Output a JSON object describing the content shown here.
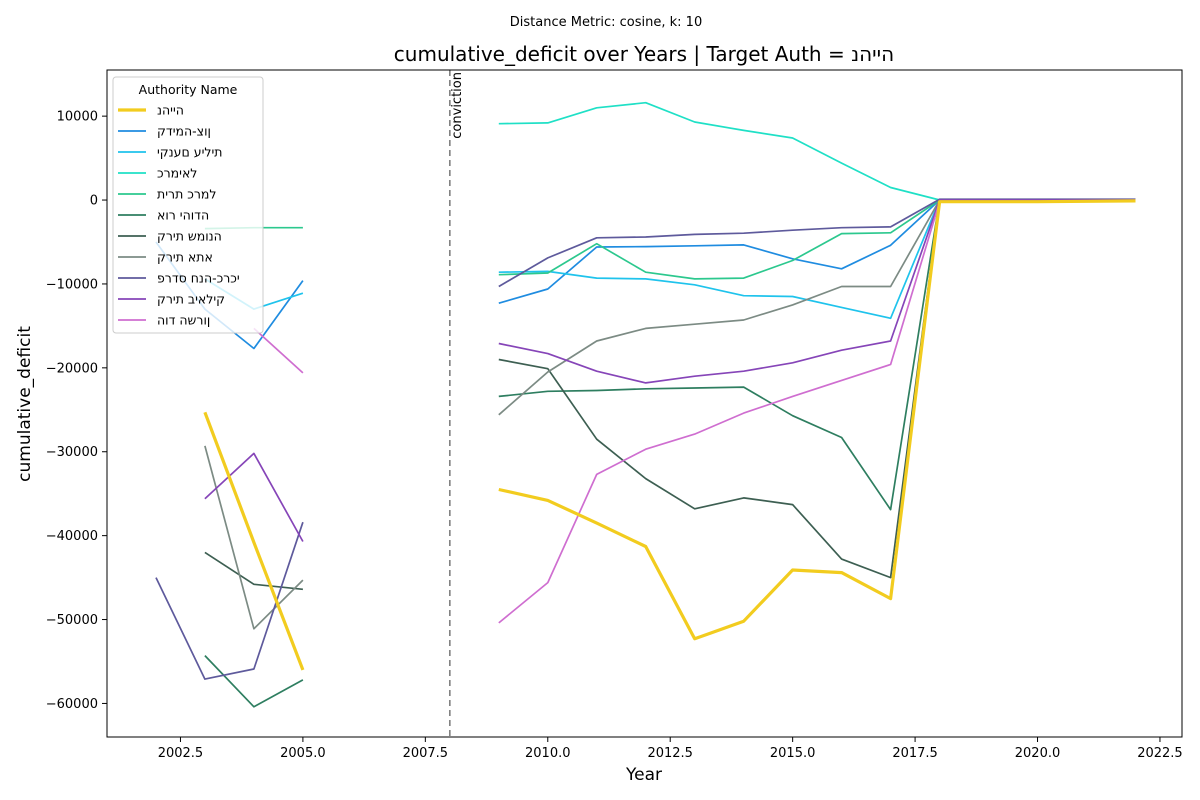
{
  "chart_data": {
    "type": "line",
    "suptitle": "Distance Metric: cosine, k: 10",
    "title": "cumulative_deficit over Years | Target Auth = הייהנ",
    "xlabel": "Year",
    "ylabel": "cumulative_deficit",
    "xlim": [
      2001.0,
      2022.95
    ],
    "ylim": [
      -64000,
      15500
    ],
    "xticks": [
      2002.5,
      2005.0,
      2007.5,
      2010.0,
      2012.5,
      2015.0,
      2017.5,
      2020.0,
      2022.5
    ],
    "xtick_labels": [
      "2002.5",
      "2005.0",
      "2007.5",
      "2010.0",
      "2012.5",
      "2015.0",
      "2017.5",
      "2020.0",
      "2022.5"
    ],
    "yticks": [
      10000,
      0,
      -10000,
      -20000,
      -30000,
      -40000,
      -50000,
      -60000
    ],
    "ytick_labels": [
      "10000",
      "0",
      "−10000",
      "−20000",
      "−30000",
      "−40000",
      "−50000",
      "−60000"
    ],
    "vline": {
      "x": 2008,
      "label": "conviction",
      "color": "#7f7f7f"
    },
    "legend": {
      "title": "Authority Name",
      "placement": "top-left"
    },
    "series": [
      {
        "name": "הייהנ",
        "color": "#f2cc1f",
        "target": true,
        "segments": [
          [
            [
              2003,
              -25300
            ],
            [
              2004,
              -40800
            ],
            [
              2005,
              -56000
            ]
          ],
          [
            [
              2009,
              -34500
            ],
            [
              2010,
              -35800
            ],
            [
              2011,
              -38500
            ],
            [
              2012,
              -41300
            ],
            [
              2013,
              -52300
            ],
            [
              2014,
              -50200
            ],
            [
              2015,
              -44100
            ],
            [
              2016,
              -44400
            ],
            [
              2017,
              -47500
            ],
            [
              2018,
              -200
            ],
            [
              2019,
              -200
            ],
            [
              2020,
              -200
            ],
            [
              2021,
              -150
            ],
            [
              2022,
              -100
            ]
          ]
        ]
      },
      {
        "name": "ןוצ-המידק",
        "color": "#1f8ce0",
        "segments": [
          [
            [
              2002,
              -5000
            ],
            [
              2003,
              -13000
            ],
            [
              2004,
              -17700
            ],
            [
              2005,
              -9600
            ]
          ],
          [
            [
              2009,
              -12300
            ],
            [
              2010,
              -10600
            ],
            [
              2011,
              -5600
            ],
            [
              2012,
              -5550
            ],
            [
              2013,
              -5450
            ],
            [
              2014,
              -5350
            ],
            [
              2015,
              -7000
            ],
            [
              2016,
              -8200
            ],
            [
              2017,
              -5400
            ],
            [
              2018,
              0
            ],
            [
              2019,
              0
            ],
            [
              2020,
              0
            ],
            [
              2021,
              0
            ],
            [
              2022,
              0
            ]
          ]
        ]
      },
      {
        "name": "תיליע םענקי",
        "color": "#1fc3ec",
        "segments": [
          [
            [
              2003,
              -9400
            ],
            [
              2004,
              -13000
            ],
            [
              2005,
              -11100
            ]
          ],
          [
            [
              2009,
              -8600
            ],
            [
              2010,
              -8500
            ],
            [
              2011,
              -9300
            ],
            [
              2012,
              -9400
            ],
            [
              2013,
              -10100
            ],
            [
              2014,
              -11400
            ],
            [
              2015,
              -11500
            ],
            [
              2016,
              -12800
            ],
            [
              2017,
              -14100
            ],
            [
              2018,
              0
            ],
            [
              2019,
              0
            ],
            [
              2020,
              0
            ],
            [
              2021,
              0
            ],
            [
              2022,
              0
            ]
          ]
        ]
      },
      {
        "name": "לאימרכ",
        "color": "#1fe0c6",
        "segments": [
          [
            [
              2009,
              9100
            ],
            [
              2010,
              9200
            ],
            [
              2011,
              11000
            ],
            [
              2012,
              11600
            ],
            [
              2013,
              9300
            ],
            [
              2014,
              8300
            ],
            [
              2015,
              7400
            ],
            [
              2016,
              4400
            ],
            [
              2017,
              1500
            ],
            [
              2018,
              0
            ],
            [
              2019,
              0
            ],
            [
              2020,
              0
            ],
            [
              2021,
              0
            ],
            [
              2022,
              0
            ]
          ]
        ]
      },
      {
        "name": "למרכ תרית",
        "color": "#2cc88e",
        "segments": [
          [
            [
              2003,
              -3400
            ],
            [
              2004,
              -3300
            ],
            [
              2005,
              -3300
            ]
          ],
          [
            [
              2009,
              -8900
            ],
            [
              2010,
              -8700
            ],
            [
              2011,
              -5200
            ],
            [
              2012,
              -8600
            ],
            [
              2013,
              -9400
            ],
            [
              2014,
              -9300
            ],
            [
              2015,
              -7200
            ],
            [
              2016,
              -4000
            ],
            [
              2017,
              -3900
            ],
            [
              2018,
              0
            ],
            [
              2019,
              0
            ],
            [
              2020,
              0
            ],
            [
              2021,
              0
            ],
            [
              2022,
              0
            ]
          ]
        ]
      },
      {
        "name": "הדוהי רוא",
        "color": "#2e7e60",
        "segments": [
          [
            [
              2003,
              -54300
            ],
            [
              2004,
              -60400
            ],
            [
              2005,
              -57200
            ]
          ],
          [
            [
              2009,
              -23400
            ],
            [
              2010,
              -22800
            ],
            [
              2011,
              -22700
            ],
            [
              2012,
              -22500
            ],
            [
              2013,
              -22400
            ],
            [
              2014,
              -22300
            ],
            [
              2015,
              -25700
            ],
            [
              2016,
              -28300
            ],
            [
              2017,
              -36900
            ],
            [
              2018,
              0
            ],
            [
              2019,
              0
            ],
            [
              2020,
              0
            ],
            [
              2021,
              0
            ],
            [
              2022,
              0
            ]
          ]
        ]
      },
      {
        "name": "הנומש תירק",
        "color": "#3d5f52",
        "segments": [
          [
            [
              2003,
              -42000
            ],
            [
              2004,
              -45800
            ],
            [
              2005,
              -46400
            ]
          ],
          [
            [
              2009,
              -19000
            ],
            [
              2010,
              -20100
            ],
            [
              2011,
              -28500
            ],
            [
              2012,
              -33200
            ],
            [
              2013,
              -36800
            ],
            [
              2014,
              -35500
            ],
            [
              2015,
              -36300
            ],
            [
              2016,
              -42800
            ],
            [
              2017,
              -45000
            ],
            [
              2018,
              0
            ],
            [
              2019,
              0
            ],
            [
              2020,
              0
            ],
            [
              2021,
              0
            ],
            [
              2022,
              0
            ]
          ]
        ]
      },
      {
        "name": "אתא תירק",
        "color": "#7c8b84",
        "segments": [
          [
            [
              2003,
              -29300
            ],
            [
              2004,
              -51100
            ],
            [
              2005,
              -45300
            ]
          ],
          [
            [
              2009,
              -25600
            ],
            [
              2010,
              -20500
            ],
            [
              2011,
              -16800
            ],
            [
              2012,
              -15300
            ],
            [
              2013,
              -14800
            ],
            [
              2014,
              -14300
            ],
            [
              2015,
              -12500
            ],
            [
              2016,
              -10300
            ],
            [
              2017,
              -10300
            ],
            [
              2018,
              0
            ],
            [
              2019,
              0
            ],
            [
              2020,
              0
            ],
            [
              2021,
              0
            ],
            [
              2022,
              0
            ]
          ]
        ]
      },
      {
        "name": "יכרכ-הנח סדרפ",
        "color": "#5e5a9c",
        "segments": [
          [
            [
              2002,
              -45000
            ],
            [
              2003,
              -57100
            ],
            [
              2004,
              -55900
            ],
            [
              2005,
              -38400
            ]
          ],
          [
            [
              2009,
              -10300
            ],
            [
              2010,
              -6900
            ],
            [
              2011,
              -4500
            ],
            [
              2012,
              -4400
            ],
            [
              2013,
              -4100
            ],
            [
              2014,
              -3950
            ],
            [
              2015,
              -3600
            ],
            [
              2016,
              -3300
            ],
            [
              2017,
              -3200
            ],
            [
              2018,
              100
            ],
            [
              2019,
              100
            ],
            [
              2020,
              100
            ],
            [
              2021,
              100
            ],
            [
              2022,
              100
            ]
          ]
        ]
      },
      {
        "name": "קילאיב תירק",
        "color": "#8645b8",
        "segments": [
          [
            [
              2003,
              -35600
            ],
            [
              2004,
              -30200
            ],
            [
              2005,
              -40700
            ]
          ],
          [
            [
              2009,
              -17100
            ],
            [
              2010,
              -18300
            ],
            [
              2011,
              -20400
            ],
            [
              2012,
              -21800
            ],
            [
              2013,
              -21000
            ],
            [
              2014,
              -20400
            ],
            [
              2015,
              -19400
            ],
            [
              2016,
              -17900
            ],
            [
              2017,
              -16800
            ],
            [
              2018,
              0
            ],
            [
              2019,
              0
            ],
            [
              2020,
              0
            ],
            [
              2021,
              0
            ],
            [
              2022,
              0
            ]
          ]
        ]
      },
      {
        "name": "ןורשה דוה",
        "color": "#cf6ed0",
        "segments": [
          [
            [
              2004,
              -15300
            ],
            [
              2005,
              -20600
            ]
          ],
          [
            [
              2009,
              -50400
            ],
            [
              2010,
              -45600
            ],
            [
              2011,
              -32700
            ],
            [
              2012,
              -29700
            ],
            [
              2013,
              -27900
            ],
            [
              2014,
              -25400
            ],
            [
              2015,
              -23400
            ],
            [
              2016,
              -21500
            ],
            [
              2017,
              -19600
            ],
            [
              2018,
              -200
            ],
            [
              2019,
              -200
            ],
            [
              2020,
              -200
            ],
            [
              2021,
              -200
            ],
            [
              2022,
              -200
            ]
          ]
        ]
      }
    ]
  }
}
